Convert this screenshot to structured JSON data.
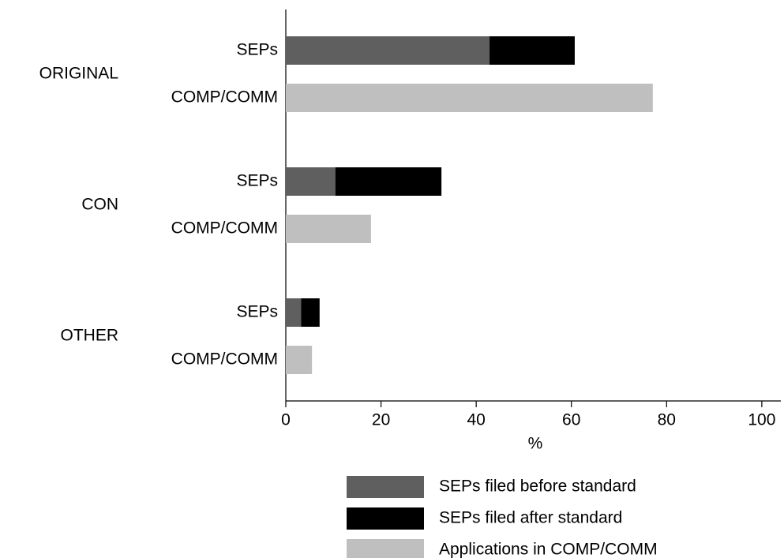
{
  "chart_data": {
    "type": "stacked-bar-horizontal",
    "groups": [
      "ORIGINAL",
      "CON",
      "OTHER"
    ],
    "categories": [
      "SEPs",
      "COMP/COMM",
      "SEPs",
      "COMP/COMM",
      "SEPs",
      "COMP/COMM"
    ],
    "series": [
      {
        "name": "SEPs filed before standard",
        "color": "#5f5f5f",
        "values": [
          42.8,
          null,
          10.4,
          null,
          3.2,
          null
        ]
      },
      {
        "name": "SEPs filed after standard",
        "color": "#000000",
        "values": [
          17.9,
          null,
          22.3,
          null,
          3.9,
          null
        ]
      },
      {
        "name": "Applications in COMP/COMM",
        "color": "#bfbfbf",
        "values": [
          null,
          77.1,
          null,
          17.9,
          null,
          5.5
        ]
      }
    ],
    "x_label": "%",
    "xlim": [
      0,
      104
    ],
    "xticks": [
      0,
      20,
      40,
      60,
      80,
      100
    ]
  }
}
